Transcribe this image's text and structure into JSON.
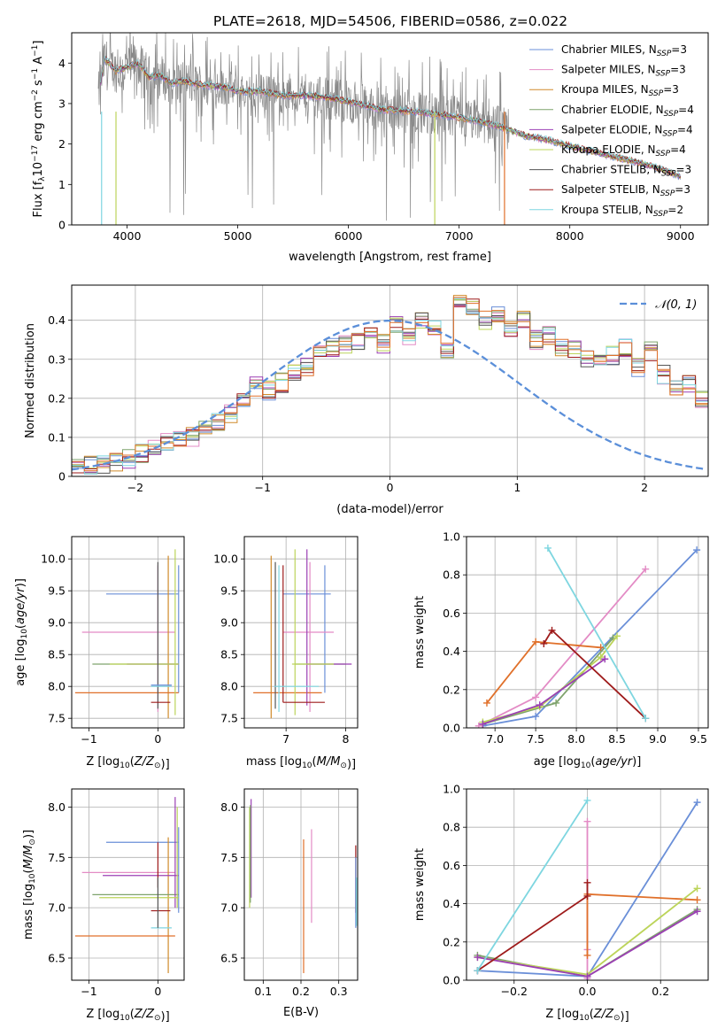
{
  "figure": {
    "title": "PLATE=2618, MJD=54506, FIBERID=0586, z=0.022"
  },
  "colors": {
    "c1": "#6a8fd8",
    "c2": "#e38bc5",
    "c3": "#d08a2a",
    "c4": "#7fa36d",
    "c5": "#9b3fb4",
    "c6": "#bcd45a",
    "c7": "#555555",
    "c8": "#9e1b1b",
    "c9": "#7ed6e0",
    "data_gray": "#888888",
    "orange": "#e0702a",
    "navy": "#4b6bd0",
    "gauss": "#5b8fd9"
  },
  "legend_spectrum": [
    {
      "prefix": "Chabrier MILES, N",
      "sub": "SSP",
      "suffix": "=3",
      "color": "#6a8fd8"
    },
    {
      "prefix": "Salpeter MILES, N",
      "sub": "SSP",
      "suffix": "=3",
      "color": "#e38bc5"
    },
    {
      "prefix": "Kroupa MILES, N",
      "sub": "SSP",
      "suffix": "=3",
      "color": "#d08a2a"
    },
    {
      "prefix": "Chabrier ELODIE, N",
      "sub": "SSP",
      "suffix": "=4",
      "color": "#7fa36d"
    },
    {
      "prefix": "Salpeter ELODIE, N",
      "sub": "SSP",
      "suffix": "=4",
      "color": "#9b3fb4"
    },
    {
      "prefix": "Kroupa ELODIE, N",
      "sub": "SSP",
      "suffix": "=4",
      "color": "#bcd45a"
    },
    {
      "prefix": "Chabrier STELIB, N",
      "sub": "SSP",
      "suffix": "=3",
      "color": "#555555"
    },
    {
      "prefix": "Salpeter STELIB, N",
      "sub": "SSP",
      "suffix": "=3",
      "color": "#9e1b1b"
    },
    {
      "prefix": "Kroupa STELIB, N",
      "sub": "SSP",
      "suffix": "=2",
      "color": "#7ed6e0"
    }
  ],
  "chart_data": [
    {
      "id": "spectrum",
      "type": "line",
      "xlabel": "wavelength [Angstrom, rest frame]",
      "ylabel": "Flux [fλ10⁻¹⁷ erg cm⁻² s⁻¹ A⁻¹]",
      "xlim": [
        3500,
        9250
      ],
      "ylim": [
        0,
        4.75
      ],
      "xticks": [
        4000,
        5000,
        6000,
        7000,
        8000,
        9000
      ],
      "yticks": [
        0,
        1,
        2,
        3,
        4
      ],
      "continuum_x": [
        3740,
        3800,
        3900,
        4000,
        4100,
        4200,
        4300,
        4400,
        4500,
        4700,
        4900,
        5000,
        5200,
        5400,
        5600,
        5800,
        6000,
        6300,
        6600,
        6900,
        7200,
        7400,
        7600,
        7800,
        8000,
        8300,
        8600,
        8800,
        9000
      ],
      "continuum_y": [
        3.2,
        4.1,
        3.8,
        3.9,
        4.0,
        3.65,
        3.7,
        3.5,
        3.55,
        3.45,
        3.4,
        3.3,
        3.3,
        3.2,
        3.2,
        3.15,
        3.05,
        2.85,
        2.8,
        2.7,
        2.55,
        2.4,
        2.2,
        2.1,
        1.95,
        1.75,
        1.55,
        1.4,
        1.2
      ],
      "data_end": 7420
    },
    {
      "id": "residuals",
      "type": "histogram",
      "xlabel": "(data-model)/error",
      "ylabel": "Normed distribution",
      "xlim": [
        -2.5,
        2.5
      ],
      "ylim": [
        0,
        0.49
      ],
      "xticks": [
        -2,
        -1,
        0,
        1,
        2
      ],
      "yticks": [
        0.0,
        0.1,
        0.2,
        0.3,
        0.4
      ],
      "bin_width": 0.1,
      "mean_hist": [
        0.028,
        0.03,
        0.032,
        0.035,
        0.045,
        0.06,
        0.07,
        0.085,
        0.095,
        0.1,
        0.12,
        0.14,
        0.16,
        0.2,
        0.23,
        0.22,
        0.24,
        0.27,
        0.28,
        0.31,
        0.33,
        0.34,
        0.35,
        0.36,
        0.34,
        0.39,
        0.36,
        0.4,
        0.38,
        0.32,
        0.45,
        0.43,
        0.4,
        0.42,
        0.38,
        0.4,
        0.35,
        0.36,
        0.33,
        0.33,
        0.3,
        0.3,
        0.31,
        0.33,
        0.28,
        0.32,
        0.26,
        0.22,
        0.24,
        0.2,
        0.18,
        0.16,
        0.15,
        0.13,
        0.11,
        0.09,
        0.08,
        0.07,
        0.06,
        0.05,
        0.04,
        0.035,
        0.03,
        0.03,
        0.03,
        0.045,
        0.035,
        0.03,
        0.04,
        0.04
      ],
      "legend_label": "𝒩(0, 1)"
    },
    {
      "id": "age_vs_Z",
      "type": "scatter",
      "xlabel": "Z [log10(Z/Z⊙)]",
      "ylabel": "age  [log10(age/yr)]",
      "xlim": [
        -1.25,
        0.38
      ],
      "ylim": [
        7.35,
        10.35
      ],
      "xticks": [
        -1,
        0
      ],
      "yticks": [
        7.5,
        8.0,
        8.5,
        9.0,
        9.5,
        10.0
      ],
      "segments": [
        {
          "c": "#6a8fd8",
          "x": -0.75,
          "x2": 0.3,
          "y": 9.45,
          "y2": 9.45
        },
        {
          "c": "#6a8fd8",
          "x": 0.3,
          "x2": 0.3,
          "y": 7.9,
          "y2": 9.9
        },
        {
          "c": "#e38bc5",
          "x": -1.1,
          "x2": 0.25,
          "y": 8.85,
          "y2": 8.85
        },
        {
          "c": "#e38bc5",
          "x": 0.0,
          "x2": 0.0,
          "y": 7.6,
          "y2": 9.9
        },
        {
          "c": "#d08a2a",
          "x": 0.15,
          "x2": 0.15,
          "y": 7.5,
          "y2": 10.05
        },
        {
          "c": "#e0702a",
          "x": -1.2,
          "x2": 0.3,
          "y": 7.9,
          "y2": 7.9
        },
        {
          "c": "#7fa36d",
          "x": -0.95,
          "x2": 0.3,
          "y": 8.35,
          "y2": 8.35
        },
        {
          "c": "#9b3fb4",
          "x": -0.45,
          "x2": 0.3,
          "y": 8.35,
          "y2": 8.35
        },
        {
          "c": "#bcd45a",
          "x": -0.7,
          "x2": 0.3,
          "y": 8.35,
          "y2": 8.35
        },
        {
          "c": "#bcd45a",
          "x": 0.25,
          "x2": 0.25,
          "y": 7.55,
          "y2": 10.15
        },
        {
          "c": "#555555",
          "x": 0.0,
          "x2": 0.0,
          "y": 7.65,
          "y2": 9.95
        },
        {
          "c": "#9e1b1b",
          "x": -0.1,
          "x2": 0.18,
          "y": 7.75,
          "y2": 7.75
        },
        {
          "c": "#7ed6e0",
          "x": -0.1,
          "x2": 0.2,
          "y": 8.0,
          "y2": 8.0
        },
        {
          "c": "#6a8fd8",
          "x": -0.1,
          "x2": 0.2,
          "y": 8.02,
          "y2": 8.02
        }
      ]
    },
    {
      "id": "age_vs_mass",
      "type": "scatter",
      "xlabel": "mass [log10(M/M⊙)]",
      "ylabel": "",
      "xlim": [
        6.3,
        8.2
      ],
      "ylim": [
        7.35,
        10.35
      ],
      "xticks": [
        7,
        8
      ],
      "yticks": [
        7.5,
        8.0,
        8.5,
        9.0,
        9.5,
        10.0
      ],
      "segments": [
        {
          "c": "#6a8fd8",
          "x": 6.95,
          "x2": 7.75,
          "y": 9.45,
          "y2": 9.45
        },
        {
          "c": "#6a8fd8",
          "x": 7.65,
          "x2": 7.65,
          "y": 7.9,
          "y2": 9.9
        },
        {
          "c": "#e38bc5",
          "x": 6.95,
          "x2": 7.8,
          "y": 8.85,
          "y2": 8.85
        },
        {
          "c": "#e38bc5",
          "x": 7.4,
          "x2": 7.4,
          "y": 7.6,
          "y2": 9.95
        },
        {
          "c": "#d08a2a",
          "x": 6.75,
          "x2": 6.75,
          "y": 7.5,
          "y2": 10.05
        },
        {
          "c": "#e0702a",
          "x": 6.45,
          "x2": 7.6,
          "y": 7.9,
          "y2": 7.9
        },
        {
          "c": "#7fa36d",
          "x": 7.15,
          "x2": 8.0,
          "y": 8.35,
          "y2": 8.35
        },
        {
          "c": "#9b3fb4",
          "x": 7.35,
          "x2": 8.1,
          "y": 8.35,
          "y2": 8.35
        },
        {
          "c": "#9b3fb4",
          "x": 7.35,
          "x2": 7.35,
          "y": 7.7,
          "y2": 10.15
        },
        {
          "c": "#bcd45a",
          "x": 7.1,
          "x2": 7.8,
          "y": 8.35,
          "y2": 8.35
        },
        {
          "c": "#bcd45a",
          "x": 7.15,
          "x2": 7.15,
          "y": 7.55,
          "y2": 10.15
        },
        {
          "c": "#555555",
          "x": 6.82,
          "x2": 6.82,
          "y": 7.65,
          "y2": 9.95
        },
        {
          "c": "#9e1b1b",
          "x": 6.95,
          "x2": 7.65,
          "y": 7.75,
          "y2": 7.75
        },
        {
          "c": "#9e1b1b",
          "x": 6.95,
          "x2": 6.95,
          "y": 7.75,
          "y2": 9.9
        },
        {
          "c": "#7ed6e0",
          "x": 6.8,
          "x2": 7.55,
          "y": 8.0,
          "y2": 8.0
        },
        {
          "c": "#7ed6e0",
          "x": 6.88,
          "x2": 6.88,
          "y": 7.6,
          "y2": 9.9
        }
      ]
    },
    {
      "id": "mass_weight_vs_age",
      "type": "line",
      "xlabel": "age  [log10(age/yr)]",
      "ylabel": "mass weight",
      "xlim": [
        6.65,
        9.62
      ],
      "ylim": [
        0,
        1.0
      ],
      "xticks": [
        7.0,
        7.5,
        8.0,
        8.5,
        9.0,
        9.5
      ],
      "yticks": [
        0.0,
        0.2,
        0.4,
        0.6,
        0.8,
        1.0
      ],
      "series": [
        {
          "c": "#6a8fd8",
          "x": [
            6.85,
            7.5,
            9.48
          ],
          "y": [
            0.01,
            0.06,
            0.93
          ]
        },
        {
          "c": "#e38bc5",
          "x": [
            6.8,
            7.5,
            8.85
          ],
          "y": [
            0.01,
            0.16,
            0.83
          ]
        },
        {
          "c": "#e0702a",
          "x": [
            6.9,
            7.5,
            8.3
          ],
          "y": [
            0.13,
            0.45,
            0.42
          ]
        },
        {
          "c": "#7fa36d",
          "x": [
            6.85,
            7.75,
            8.45
          ],
          "y": [
            0.02,
            0.13,
            0.47
          ]
        },
        {
          "c": "#bcd45a",
          "x": [
            6.85,
            7.55,
            8.3,
            8.5
          ],
          "y": [
            0.03,
            0.11,
            0.37,
            0.48
          ]
        },
        {
          "c": "#9b3fb4",
          "x": [
            6.85,
            7.55,
            8.35
          ],
          "y": [
            0.02,
            0.12,
            0.36
          ]
        },
        {
          "c": "#9e1b1b",
          "x": [
            7.6,
            7.7,
            8.85
          ],
          "y": [
            0.44,
            0.51,
            0.05
          ]
        },
        {
          "c": "#7ed6e0",
          "x": [
            7.65,
            8.85
          ],
          "y": [
            0.94,
            0.05
          ]
        }
      ]
    },
    {
      "id": "mass_vs_Z",
      "type": "scatter",
      "xlabel": "Z [log10(Z/Z⊙)]",
      "ylabel": "mass [log10(M/M⊙)]",
      "xlim": [
        -1.25,
        0.38
      ],
      "ylim": [
        6.28,
        8.18
      ],
      "xticks": [
        -1,
        0
      ],
      "yticks": [
        6.5,
        7.0,
        7.5,
        8.0
      ],
      "segments": [
        {
          "c": "#6a8fd8",
          "x": -0.75,
          "x2": 0.3,
          "y": 7.65,
          "y2": 7.65
        },
        {
          "c": "#6a8fd8",
          "x": 0.3,
          "x2": 0.3,
          "y": 6.95,
          "y2": 7.8
        },
        {
          "c": "#e38bc5",
          "x": -1.1,
          "x2": 0.25,
          "y": 7.35,
          "y2": 7.35
        },
        {
          "c": "#d08a2a",
          "x": 0.15,
          "x2": 0.15,
          "y": 6.35,
          "y2": 7.7
        },
        {
          "c": "#e0702a",
          "x": -1.2,
          "x2": 0.25,
          "y": 6.72,
          "y2": 6.72
        },
        {
          "c": "#7fa36d",
          "x": -0.95,
          "x2": 0.3,
          "y": 7.13,
          "y2": 7.13
        },
        {
          "c": "#9b3fb4",
          "x": -0.8,
          "x2": 0.3,
          "y": 7.32,
          "y2": 7.32
        },
        {
          "c": "#9b3fb4",
          "x": 0.25,
          "x2": 0.25,
          "y": 7.0,
          "y2": 8.1
        },
        {
          "c": "#bcd45a",
          "x": -0.85,
          "x2": 0.3,
          "y": 7.1,
          "y2": 7.1
        },
        {
          "c": "#bcd45a",
          "x": 0.28,
          "x2": 0.28,
          "y": 7.0,
          "y2": 8.0
        },
        {
          "c": "#9e1b1b",
          "x": -0.1,
          "x2": 0.18,
          "y": 6.97,
          "y2": 6.97
        },
        {
          "c": "#9e1b1b",
          "x": 0.0,
          "x2": 0.0,
          "y": 7.2,
          "y2": 7.65
        },
        {
          "c": "#7ed6e0",
          "x": -0.1,
          "x2": 0.2,
          "y": 6.8,
          "y2": 6.8
        },
        {
          "c": "#555555",
          "x": 0.0,
          "x2": 0.0,
          "y": 6.8,
          "y2": 7.3
        }
      ]
    },
    {
      "id": "mass_vs_ebv",
      "type": "scatter",
      "xlabel": "E(B-V)",
      "ylabel": "",
      "xlim": [
        0.05,
        0.35
      ],
      "ylim": [
        6.28,
        8.18
      ],
      "xticks": [
        0.1,
        0.2,
        0.3
      ],
      "yticks": [
        6.5,
        7.0,
        7.5,
        8.0
      ],
      "segments": [
        {
          "c": "#9b3fb4",
          "x": 0.068,
          "x2": 0.068,
          "y": 7.1,
          "y2": 8.08
        },
        {
          "c": "#bcd45a",
          "x": 0.064,
          "x2": 0.064,
          "y": 7.0,
          "y2": 8.0
        },
        {
          "c": "#7fa36d",
          "x": 0.066,
          "x2": 0.066,
          "y": 7.05,
          "y2": 8.02
        },
        {
          "c": "#e0702a",
          "x": 0.207,
          "x2": 0.207,
          "y": 6.35,
          "y2": 7.68
        },
        {
          "c": "#e38bc5",
          "x": 0.228,
          "x2": 0.228,
          "y": 6.85,
          "y2": 7.78
        },
        {
          "c": "#9e1b1b",
          "x": 0.345,
          "x2": 0.345,
          "y": 6.95,
          "y2": 7.62
        },
        {
          "c": "#6a8fd8",
          "x": 0.345,
          "x2": 0.345,
          "y": 6.8,
          "y2": 7.5
        },
        {
          "c": "#7ed6e0",
          "x": 0.347,
          "x2": 0.347,
          "y": 6.82,
          "y2": 7.3
        }
      ]
    },
    {
      "id": "mass_weight_vs_Z",
      "type": "line",
      "xlabel": "Z [log10(Z/Z⊙)]",
      "ylabel": "mass weight",
      "xlim": [
        -0.33,
        0.33
      ],
      "ylim": [
        0,
        1.0
      ],
      "xticks": [
        -0.2,
        0.0,
        0.2
      ],
      "yticks": [
        0.0,
        0.2,
        0.4,
        0.6,
        0.8,
        1.0
      ],
      "series": [
        {
          "c": "#6a8fd8",
          "x": [
            -0.3,
            0.0,
            0.3
          ],
          "y": [
            0.05,
            0.02,
            0.93
          ]
        },
        {
          "c": "#e38bc5",
          "x": [
            0.0,
            0.0,
            0.0
          ],
          "y": [
            0.01,
            0.16,
            0.83
          ]
        },
        {
          "c": "#e0702a",
          "x": [
            0.0,
            0.0,
            0.3
          ],
          "y": [
            0.13,
            0.45,
            0.42
          ]
        },
        {
          "c": "#7fa36d",
          "x": [
            -0.3,
            0.0,
            0.3
          ],
          "y": [
            0.13,
            0.02,
            0.37
          ]
        },
        {
          "c": "#bcd45a",
          "x": [
            -0.3,
            0.0,
            0.3
          ],
          "y": [
            0.12,
            0.03,
            0.48
          ]
        },
        {
          "c": "#9b3fb4",
          "x": [
            -0.3,
            0.0,
            0.3
          ],
          "y": [
            0.12,
            0.02,
            0.36
          ]
        },
        {
          "c": "#9e1b1b",
          "x": [
            -0.3,
            0.0,
            0.0
          ],
          "y": [
            0.05,
            0.44,
            0.51
          ]
        },
        {
          "c": "#7ed6e0",
          "x": [
            -0.3,
            0.0
          ],
          "y": [
            0.05,
            0.94
          ]
        }
      ]
    }
  ]
}
